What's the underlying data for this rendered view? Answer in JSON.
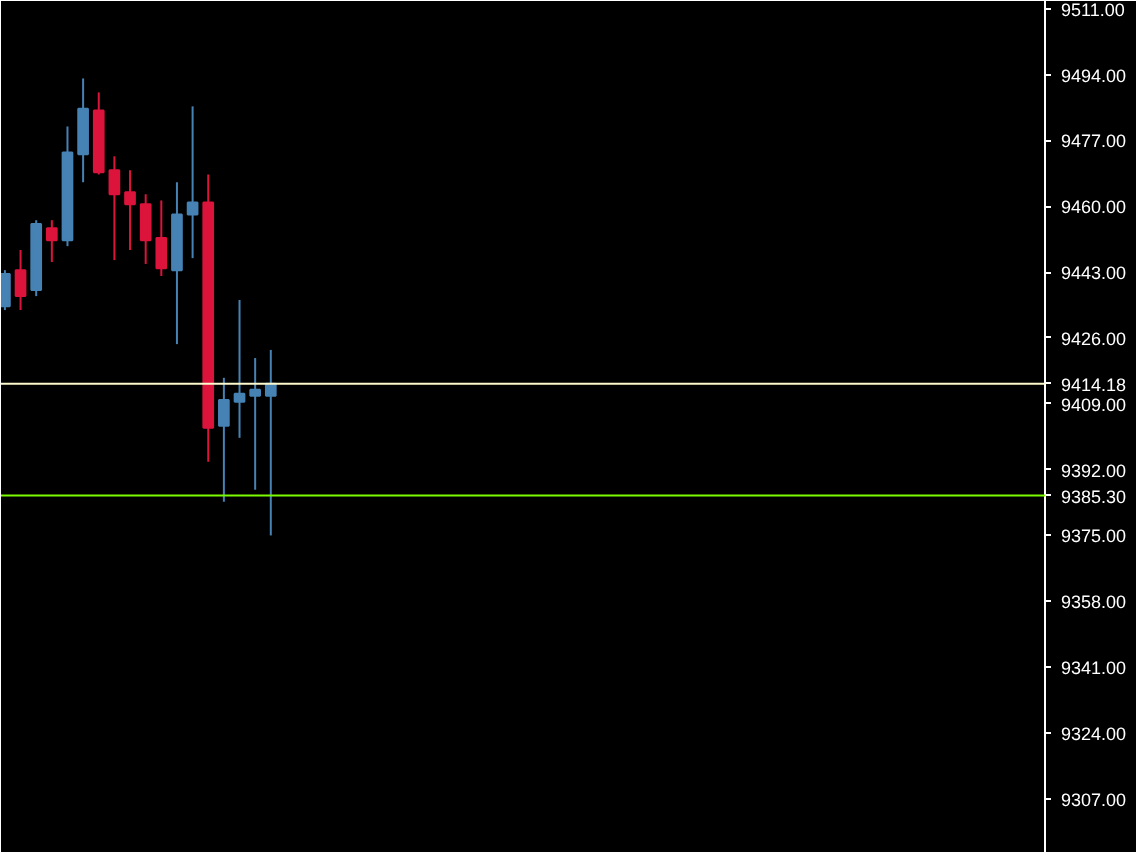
{
  "chart_data": {
    "type": "candlestick",
    "categories": [
      null,
      null,
      null,
      null,
      null,
      null,
      null,
      null,
      null,
      null,
      null,
      null,
      null,
      null,
      null,
      null,
      null,
      null,
      null,
      null,
      null,
      null,
      null,
      null,
      null,
      null,
      null,
      null,
      null,
      null,
      null,
      null,
      null,
      null,
      null,
      null,
      null,
      null,
      null,
      null,
      null,
      null,
      null,
      null,
      null,
      null,
      null,
      null,
      null,
      null,
      null,
      null,
      null,
      null,
      null,
      null,
      null,
      null,
      null,
      null,
      null,
      null,
      null,
      null,
      null,
      null,
      null
    ],
    "ohlc": [
      [
        9434.2,
        9443.5,
        9433.2,
        9442.5
      ],
      [
        9443.5,
        9448.7,
        9433.2,
        9436.8
      ],
      [
        9438.4,
        9456.4,
        9436.8,
        9455.4
      ],
      [
        9454.3,
        9456.4,
        9445.6,
        9451.2
      ],
      [
        9451.2,
        9480.6,
        9449.7,
        9473.9
      ],
      [
        9473.4,
        9493.0,
        9466.2,
        9485.2
      ],
      [
        9484.7,
        9489.4,
        9468.2,
        9468.8
      ],
      [
        9469.3,
        9472.9,
        9446.1,
        9463.1
      ],
      [
        9463.6,
        9469.3,
        9448.7,
        9460.5
      ],
      [
        9460.5,
        9463.1,
        9445.1,
        9451.2
      ],
      [
        9451.8,
        9461.5,
        9442.0,
        9444.0
      ],
      [
        9443.5,
        9466.2,
        9424.4,
        9457.9
      ],
      [
        9457.9,
        9485.8,
        9446.6,
        9461.0
      ],
      [
        9461.0,
        9468.2,
        9394.0,
        9402.8
      ],
      [
        9403.3,
        9415.7,
        9383.7,
        9410.0
      ],
      [
        9409.5,
        9435.8,
        9400.2,
        9411.6
      ],
      [
        9411.1,
        9420.8,
        9386.8,
        9412.6
      ],
      [
        9411.1,
        9422.9,
        9375.0,
        9414.18
      ],
      null,
      null,
      null,
      null,
      null,
      null,
      null,
      null,
      null,
      null,
      null,
      null,
      null,
      null,
      null,
      null,
      null,
      null,
      null,
      null,
      null,
      null,
      null,
      null,
      null,
      null,
      null,
      null,
      null,
      null,
      null,
      null,
      null,
      null,
      null,
      null,
      null,
      null,
      null,
      null,
      null,
      null,
      null,
      null,
      null,
      null,
      null,
      null,
      null
    ],
    "colors": [
      "#4682b4",
      "#dc143c",
      "#4682b4",
      "#dc143c",
      "#4682b4",
      "#4682b4",
      "#dc143c",
      "#dc143c",
      "#dc143c",
      "#dc143c",
      "#dc143c",
      "#4682b4",
      "#4682b4",
      "#dc143c",
      "#4682b4",
      "#4682b4",
      "#4682b4",
      "#4682b4",
      null,
      null,
      null,
      null,
      null,
      null,
      null,
      null,
      null,
      null,
      null,
      null,
      null,
      null,
      null,
      null,
      null,
      null,
      null,
      null,
      null,
      null,
      null,
      null,
      null,
      null,
      null,
      null,
      null,
      null,
      null,
      null,
      null,
      null,
      null,
      null,
      null,
      null,
      null,
      null,
      null,
      null,
      null,
      null,
      null,
      null,
      null,
      null,
      null
    ],
    "ylim": [
      9293,
      9513
    ],
    "yticks": [
      {
        "value": 9511,
        "label": "9511.00"
      },
      {
        "value": 9494,
        "label": "9494.00"
      },
      {
        "value": 9477,
        "label": "9477.00"
      },
      {
        "value": 9460,
        "label": "9460.00"
      },
      {
        "value": 9443,
        "label": "9443.00"
      },
      {
        "value": 9426,
        "label": "9426.00"
      },
      {
        "value": 9409,
        "label": "9409.00"
      },
      {
        "value": 9392,
        "label": "9392.00"
      },
      {
        "value": 9375,
        "label": "9375.00"
      },
      {
        "value": 9358,
        "label": "9358.00"
      },
      {
        "value": 9341,
        "label": "9341.00"
      },
      {
        "value": 9324,
        "label": "9324.00"
      },
      {
        "value": 9307,
        "label": "9307.00"
      }
    ],
    "ref_lines": [
      {
        "axis": "y",
        "value": 9414.18,
        "label": "9414.18",
        "color": "#fffacd"
      },
      {
        "axis": "y",
        "value": 9385.3,
        "label": "9385.30",
        "color": "#7cfc00"
      }
    ],
    "tick_labels": "y",
    "grid": false
  }
}
